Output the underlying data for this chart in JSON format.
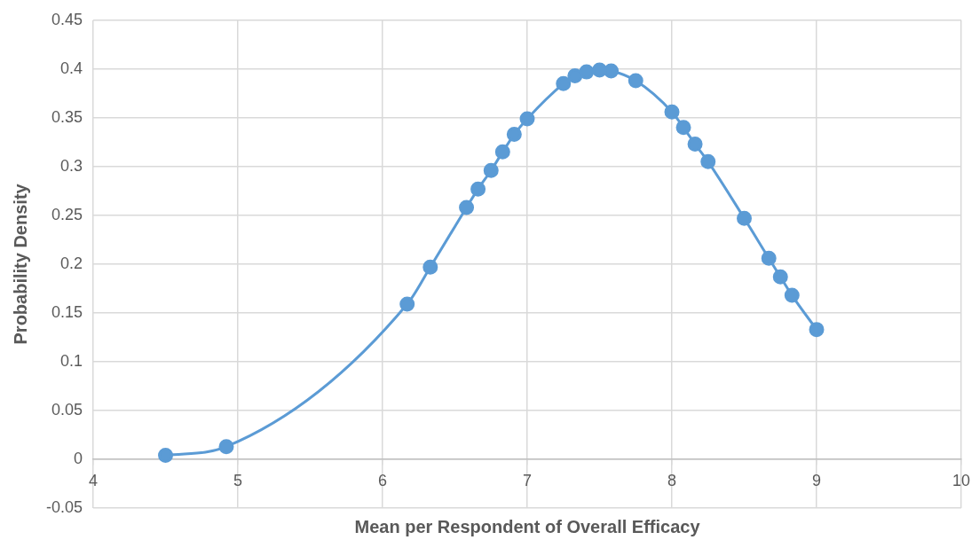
{
  "chart_data": {
    "type": "line",
    "xlabel": "Mean per Respondent of Overall Efficacy",
    "ylabel": "Probability Density",
    "x": [
      4.5,
      4.92,
      6.17,
      6.33,
      6.58,
      6.66,
      6.75,
      6.83,
      6.91,
      7.0,
      7.25,
      7.33,
      7.41,
      7.5,
      7.58,
      7.75,
      8.0,
      8.08,
      8.16,
      8.25,
      8.5,
      8.67,
      8.75,
      8.83,
      9.0
    ],
    "series": [
      {
        "color": "#5b9bd5",
        "values": [
          0.004,
          0.013,
          0.159,
          0.197,
          0.258,
          0.277,
          0.296,
          0.315,
          0.333,
          0.349,
          0.385,
          0.393,
          0.397,
          0.399,
          0.398,
          0.388,
          0.356,
          0.34,
          0.323,
          0.305,
          0.247,
          0.206,
          0.187,
          0.168,
          0.133
        ]
      }
    ],
    "xlim": [
      4,
      10
    ],
    "xticks": [
      4,
      5,
      6,
      7,
      8,
      9,
      10
    ],
    "ylim": [
      -0.05,
      0.45
    ],
    "yticks": [
      -0.05,
      0,
      0.05,
      0.1,
      0.15,
      0.2,
      0.25,
      0.3,
      0.35,
      0.4,
      0.45
    ],
    "grid": true,
    "legend": false,
    "marker": "circle",
    "line_style": "solid"
  }
}
